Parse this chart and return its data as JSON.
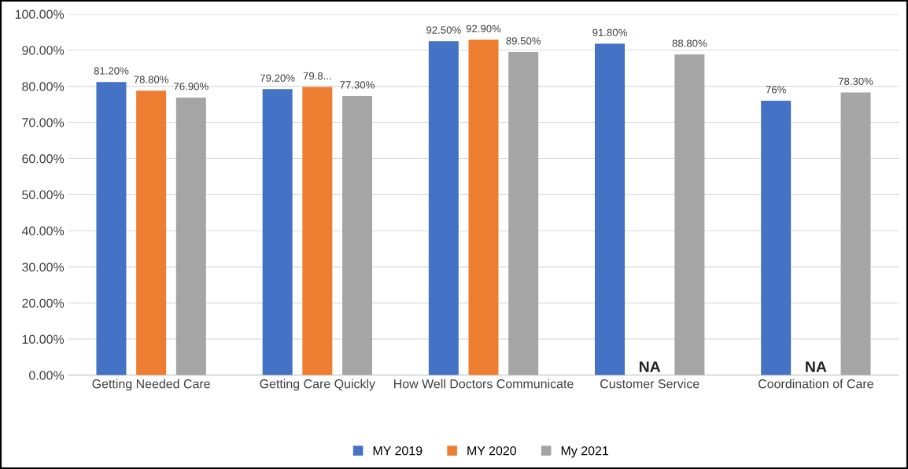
{
  "chart_data": {
    "type": "bar",
    "categories": [
      "Getting Needed Care",
      "Getting Care Quickly",
      "How Well Doctors Communicate",
      "Customer Service",
      "Coordination of Care"
    ],
    "series": [
      {
        "name": "MY 2019",
        "color": "#4472c4",
        "values": [
          81.2,
          79.2,
          92.5,
          91.8,
          76
        ],
        "value_labels": [
          "81.20%",
          "79.20%",
          "92.50%",
          "91.80%",
          "76%"
        ]
      },
      {
        "name": "MY 2020",
        "color": "#ed7d31",
        "values": [
          78.8,
          79.8,
          92.9,
          null,
          null
        ],
        "value_labels": [
          "78.80%",
          "79.8...",
          "92.90%",
          "NA",
          "NA"
        ]
      },
      {
        "name": "My 2021",
        "color": "#a5a5a5",
        "values": [
          76.9,
          77.3,
          89.5,
          88.8,
          78.3
        ],
        "value_labels": [
          "76.90%",
          "77.30%",
          "89.50%",
          "88.80%",
          "78.30%"
        ]
      }
    ],
    "ylim": [
      0,
      100
    ],
    "yticks": [
      {
        "value": 0,
        "label": "0.00%"
      },
      {
        "value": 10,
        "label": "10.00%"
      },
      {
        "value": 20,
        "label": "20.00%"
      },
      {
        "value": 30,
        "label": "30.00%"
      },
      {
        "value": 40,
        "label": "40.00%"
      },
      {
        "value": 50,
        "label": "50.00%"
      },
      {
        "value": 60,
        "label": "60.00%"
      },
      {
        "value": 70,
        "label": "70.00%"
      },
      {
        "value": 80,
        "label": "80.00%"
      },
      {
        "value": 90,
        "label": "90.00%"
      },
      {
        "value": 100,
        "label": "100.00%"
      }
    ],
    "grid": "y",
    "legend": "bottom"
  }
}
